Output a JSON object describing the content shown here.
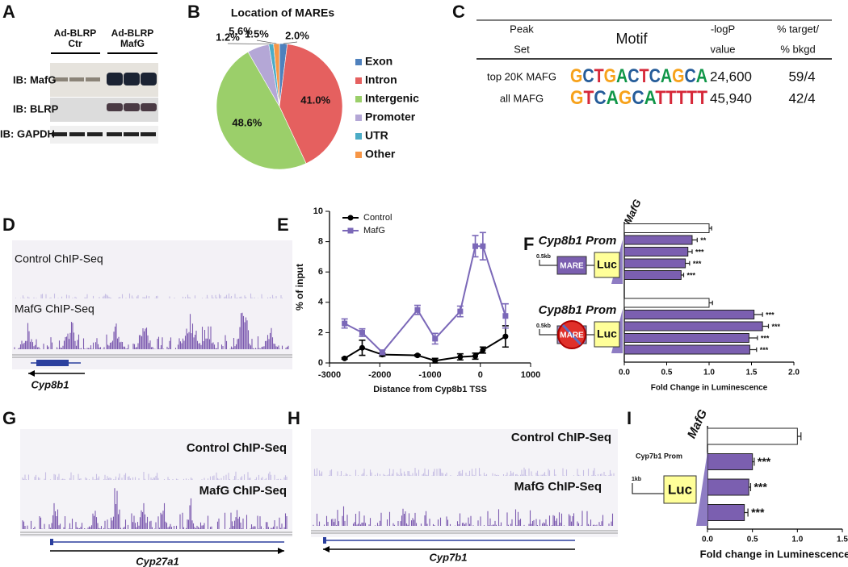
{
  "panel_letters": [
    "A",
    "B",
    "C",
    "D",
    "E",
    "F",
    "G",
    "H",
    "I"
  ],
  "blot": {
    "groups": [
      {
        "line1": "Ad-BLRP",
        "line2": "Ctr"
      },
      {
        "line1": "Ad-BLRP",
        "line2": "MafG"
      }
    ],
    "rows": [
      "IB: MafG",
      "IB: BLRP",
      "IB: GAPDH"
    ]
  },
  "motif_table": {
    "headers": [
      [
        "Peak",
        "Set"
      ],
      [
        "Motif"
      ],
      [
        "-logP",
        "value"
      ],
      [
        "% target/",
        "% bkgd"
      ]
    ],
    "rows": [
      [
        "top 20K MAFG",
        "GCTGACTCAGCA",
        "24,600",
        "59/4"
      ],
      [
        "all MAFG",
        "GTCAGCATTTTT",
        "45,940",
        "42/4"
      ]
    ]
  },
  "tracks": [
    {
      "control": "Control ChIP-Seq",
      "treated": "MafG ChIP-Seq",
      "gene": "Cyp8b1"
    },
    {
      "control": "Control ChIP-Seq",
      "treated": "MafG ChIP-Seq",
      "gene": "Cyp27a1"
    },
    {
      "control": "Control ChIP-Seq",
      "treated": "MafG ChIP-Seq",
      "gene": "Cyp7b1"
    }
  ],
  "chart_data": [
    {
      "type": "pie",
      "title": "Location of MAREs",
      "categories": [
        "Exon",
        "Intron",
        "Intergenic",
        "Promoter",
        "UTR",
        "Other"
      ],
      "values": [
        2.0,
        41.0,
        48.6,
        5.6,
        1.2,
        1.5
      ],
      "value_labels": [
        "2.0%",
        "41.0%",
        "48.6%",
        "5.6%",
        "1.2%",
        "1.5%"
      ],
      "colors": [
        "#4f81bd",
        "#e5605f",
        "#9bcf6a",
        "#b4a7d6",
        "#4bacc6",
        "#f79646"
      ],
      "legend": "right"
    },
    {
      "type": "line",
      "xlabel": "Distance from Cyp8b1 TSS",
      "ylabel": "% of input",
      "x": [
        -2700,
        -2350,
        -1950,
        -1250,
        -900,
        -400,
        -100,
        50,
        500
      ],
      "xlim": [
        -3000,
        1000
      ],
      "xticks": [
        -3000,
        -2000,
        -1000,
        0,
        1000
      ],
      "ylim": [
        0,
        10
      ],
      "yticks": [
        0,
        2,
        4,
        6,
        8,
        10
      ],
      "legend": "upper left",
      "series": [
        {
          "name": "Control",
          "color": "#000000",
          "marker": "circle",
          "values": [
            0.3,
            1.0,
            0.55,
            0.5,
            0.15,
            0.4,
            0.45,
            0.85,
            1.75
          ],
          "errors": [
            0.05,
            0.5,
            0.1,
            0.05,
            0.15,
            0.2,
            0.2,
            0.2,
            0.7
          ]
        },
        {
          "name": "MafG",
          "color": "#7b68b8",
          "marker": "square",
          "values": [
            2.6,
            2.0,
            0.7,
            3.5,
            1.6,
            3.4,
            7.7,
            7.7,
            3.1
          ],
          "errors": [
            0.3,
            0.25,
            0.15,
            0.3,
            0.35,
            0.35,
            0.7,
            0.9,
            0.8
          ]
        }
      ]
    },
    {
      "type": "bar",
      "orientation": "horizontal",
      "xlabel": "Fold Change in Luminescence",
      "ylabel": "MafG",
      "xlim": [
        0,
        2
      ],
      "xticks": [
        {
          "value": 0,
          "label": "0.0"
        },
        0.5,
        {
          "value": 1,
          "label": "1.0"
        },
        1.5,
        {
          "value": 2,
          "label": "2.0"
        }
      ],
      "values": [
        1.0,
        0.8,
        0.75,
        0.72,
        0.67,
        1.0,
        1.53,
        1.63,
        1.47,
        1.48
      ],
      "errors": [
        0.03,
        0.06,
        0.05,
        0.05,
        0.03,
        0.04,
        0.1,
        0.07,
        0.1,
        0.08
      ],
      "colors": [
        "#ffffff",
        "#7b5fb0",
        "#7b5fb0",
        "#7b5fb0",
        "#7b5fb0",
        "#ffffff",
        "#7b5fb0",
        "#7b5fb0",
        "#7b5fb0",
        "#7b5fb0"
      ],
      "annotations": [
        null,
        "**",
        "***",
        "***",
        "***",
        null,
        "***",
        "***",
        "***",
        "***"
      ],
      "group_labels": [
        "Cyp8b1 Prom",
        "Cyp8b1 Prom"
      ],
      "constructs": [
        {
          "size": "0.5kb",
          "element": "MARE",
          "reporter": "Luc"
        },
        {
          "size": "0.5kb",
          "element": "MARE",
          "reporter": "Luc"
        }
      ]
    },
    {
      "type": "bar",
      "orientation": "horizontal",
      "xlabel": "Fold change in Luminescence",
      "ylabel": "MafG",
      "xlim": [
        0,
        1.5
      ],
      "xticks": [
        {
          "value": 0,
          "label": "0.0"
        },
        0.5,
        {
          "value": 1,
          "label": "1.0"
        },
        1.5
      ],
      "values": [
        1.0,
        0.5,
        0.46,
        0.41
      ],
      "errors": [
        0.04,
        0.02,
        0.02,
        0.04
      ],
      "colors": [
        "#ffffff",
        "#7b5fb0",
        "#7b5fb0",
        "#7b5fb0"
      ],
      "annotations": [
        null,
        "***",
        "***",
        "***"
      ],
      "group_labels": [
        "Cyp7b1 Prom"
      ],
      "constructs": [
        {
          "size": "1kb",
          "reporter": "Luc"
        }
      ]
    }
  ]
}
